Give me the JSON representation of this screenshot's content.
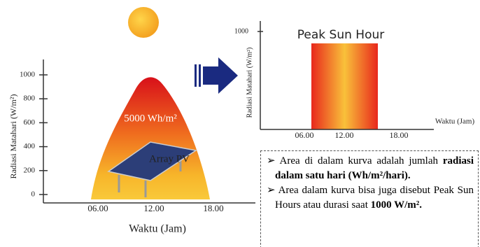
{
  "left_chart": {
    "y_axis_label": "Radiasi Matahari (W/m²)",
    "yticks": [
      0,
      200,
      400,
      600,
      800,
      1000
    ],
    "x_ticks": [
      "06.00",
      "12.00",
      "18.00"
    ],
    "x_axis_label": "Waktu (Jam)",
    "area_label": "5000 Wh/m²",
    "panel_label": "Array PV"
  },
  "right_chart": {
    "title": "Peak Sun Hour",
    "y_axis_label": "Radiasi Matahari (W/m²)",
    "yticks": [
      1000
    ],
    "x_ticks": [
      "06.00",
      "12.00",
      "18.00"
    ],
    "x_axis_label": "Waktu (Jam)"
  },
  "notes": [
    {
      "text": "Area di dalam kurva adalah jumlah",
      "bold": "radiasi dalam satu hari (Wh/m²/hari)."
    },
    {
      "text": "Area dalam kurva bisa juga disebut Peak Sun Hours atau durasi saat",
      "bold": "1000 W/m²."
    }
  ]
}
